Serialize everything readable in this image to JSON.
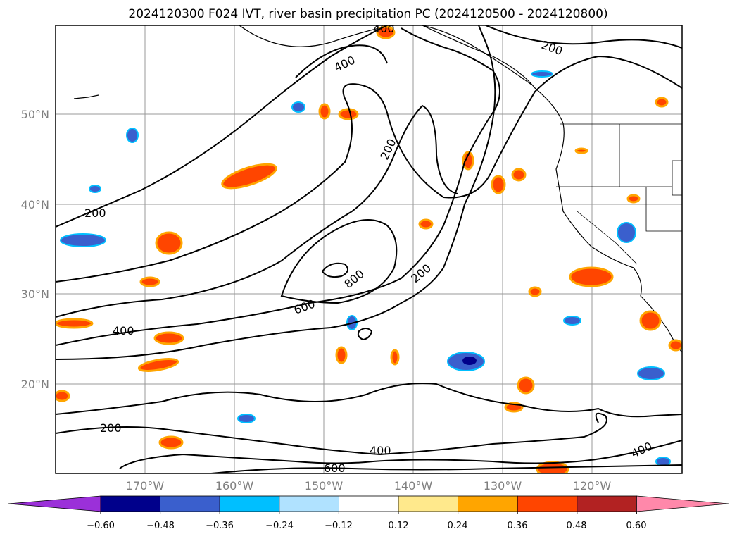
{
  "title": "2024120300 F024 IVT, river basin precipitation PC (2024120500 - 2024120800)",
  "map": {
    "lat_labels": [
      "50°N",
      "40°N",
      "30°N",
      "20°N"
    ],
    "lon_labels": [
      "170°W",
      "160°W",
      "150°W",
      "140°W",
      "130°W",
      "120°W"
    ],
    "contour_labels": [
      "400",
      "400",
      "200",
      "200",
      "200",
      "200",
      "800",
      "600",
      "400",
      "200",
      "400",
      "600",
      "400"
    ]
  },
  "colorbar": {
    "ticks": [
      "−0.60",
      "−0.48",
      "−0.36",
      "−0.24",
      "−0.12",
      "0.12",
      "0.24",
      "0.36",
      "0.48",
      "0.60"
    ],
    "colors": [
      "#9b30d9",
      "#00008b",
      "#3a5fcd",
      "#00bfff",
      "#b0e2ff",
      "#ffffff",
      "#ffe98c",
      "#ffa500",
      "#ff4500",
      "#b22222",
      "#ff88aa"
    ]
  },
  "colors": {
    "contour": "#000000",
    "grid": "#999999",
    "label": "#808080"
  }
}
